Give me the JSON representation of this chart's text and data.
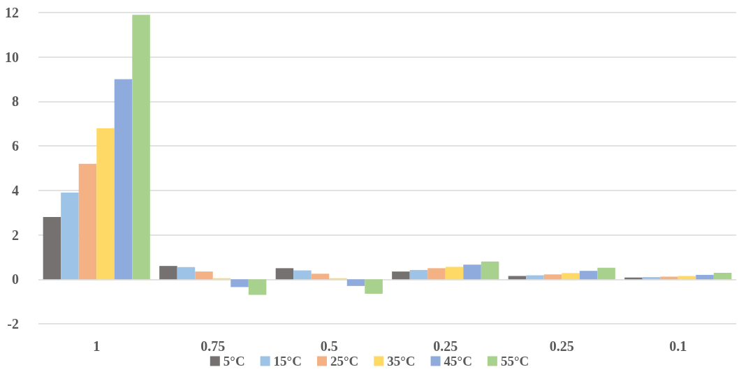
{
  "chart_data": {
    "type": "bar",
    "categories": [
      "1",
      "0.75",
      "0.5",
      "0.25",
      "0.25",
      "0.1"
    ],
    "series": [
      {
        "name": "5°C",
        "color": "#767171",
        "values": [
          2.8,
          0.6,
          0.5,
          0.35,
          0.15,
          0.08
        ]
      },
      {
        "name": "15°C",
        "color": "#9dc3e6",
        "values": [
          3.9,
          0.55,
          0.4,
          0.42,
          0.18,
          0.1
        ]
      },
      {
        "name": "25°C",
        "color": "#f4b183",
        "values": [
          5.2,
          0.35,
          0.25,
          0.5,
          0.22,
          0.12
        ]
      },
      {
        "name": "35°C",
        "color": "#ffd966",
        "values": [
          6.8,
          0.05,
          0.05,
          0.56,
          0.28,
          0.15
        ]
      },
      {
        "name": "45°C",
        "color": "#8faadc",
        "values": [
          9.0,
          -0.35,
          -0.3,
          0.66,
          0.38,
          0.2
        ]
      },
      {
        "name": "55°C",
        "color": "#a9d18e",
        "values": [
          11.9,
          -0.7,
          -0.65,
          0.8,
          0.52,
          0.29
        ]
      }
    ],
    "ylim": [
      -2,
      12
    ],
    "yticks": [
      -2,
      0,
      2,
      4,
      6,
      8,
      10,
      12
    ],
    "grid": "y",
    "legend": "bottom"
  }
}
